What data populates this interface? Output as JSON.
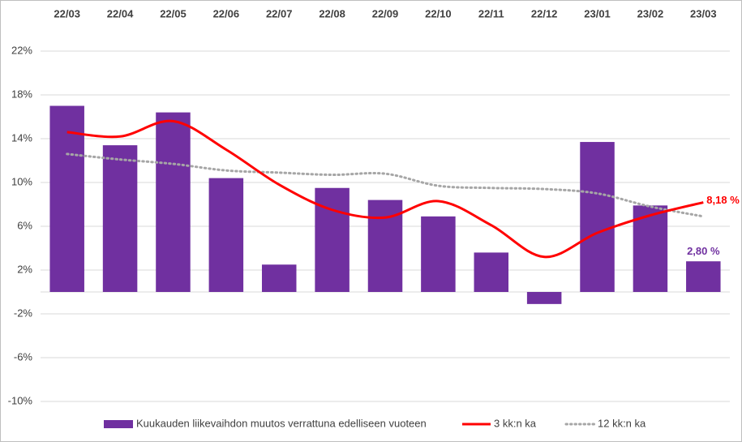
{
  "chart_data": {
    "type": "bar",
    "categories": [
      "22/03",
      "22/04",
      "22/05",
      "22/06",
      "22/07",
      "22/08",
      "22/09",
      "22/10",
      "22/11",
      "22/12",
      "23/01",
      "23/02",
      "23/03"
    ],
    "ylim": [
      -10,
      22
    ],
    "yticks": [
      22,
      18,
      14,
      10,
      6,
      2,
      -2,
      -6,
      -10
    ],
    "ytick_labels": [
      "22%",
      "18%",
      "14%",
      "10%",
      "6%",
      "2%",
      "-2%",
      "-6%",
      "-10%"
    ],
    "grid": true,
    "legend_position": "bottom",
    "series": [
      {
        "name": "Kuukauden liikevaihdon muutos verrattuna edelliseen vuoteen",
        "kind": "bar",
        "color": "#7030a0",
        "values": [
          17.0,
          13.4,
          16.4,
          10.4,
          2.5,
          9.5,
          8.4,
          6.9,
          3.6,
          -1.1,
          13.7,
          7.9,
          2.8
        ]
      },
      {
        "name": "3 kk:n ka",
        "kind": "line",
        "color": "#ff0000",
        "values": [
          14.6,
          14.2,
          15.6,
          13.0,
          9.8,
          7.5,
          6.8,
          8.3,
          6.1,
          3.2,
          5.4,
          7.0,
          8.18
        ]
      },
      {
        "name": "12 kk:n ka",
        "kind": "dotted-line",
        "color": "#a6a6a6",
        "values": [
          12.6,
          12.1,
          11.7,
          11.1,
          10.9,
          10.7,
          10.8,
          9.7,
          9.5,
          9.4,
          9.0,
          7.8,
          6.9
        ]
      }
    ],
    "annotations": [
      {
        "series": 0,
        "index": 12,
        "text": "2,80 %"
      },
      {
        "series": 1,
        "index": 12,
        "text": "8,18 %"
      }
    ]
  }
}
